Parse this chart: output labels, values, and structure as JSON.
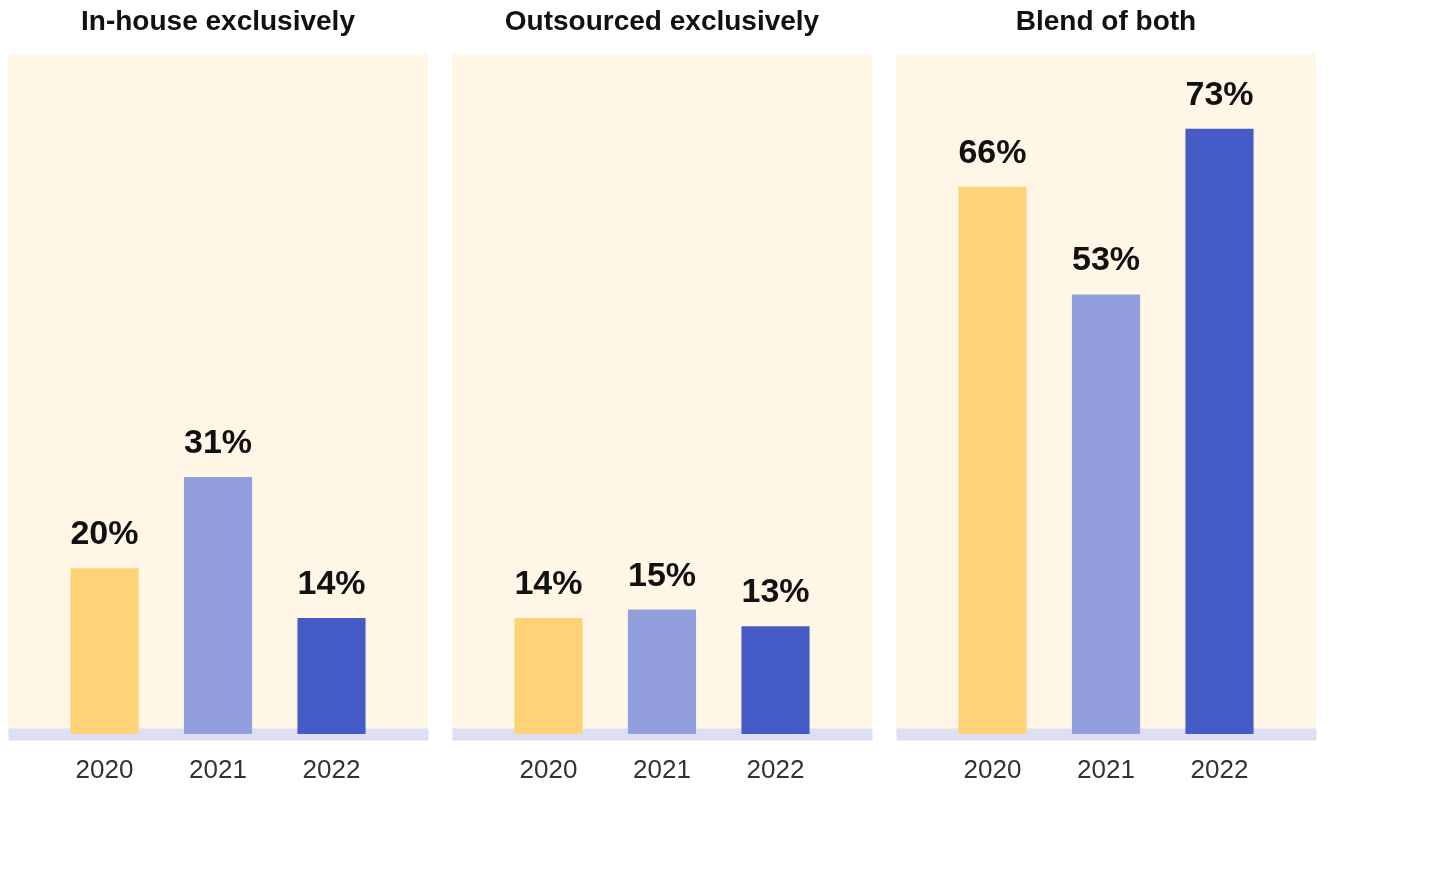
{
  "chart_data": [
    {
      "type": "bar",
      "title": "In-house exclusively",
      "categories": [
        "2020",
        "2021",
        "2022"
      ],
      "values": [
        20,
        31,
        14
      ],
      "value_labels": [
        "20%",
        "31%",
        "14%"
      ],
      "colors": [
        "#fed378",
        "#929fdc",
        "#455bc5"
      ],
      "ylim": [
        0,
        82
      ],
      "tick_labels": "x",
      "grid": false
    },
    {
      "type": "bar",
      "title": "Outsourced exclusively",
      "categories": [
        "2020",
        "2021",
        "2022"
      ],
      "values": [
        14,
        15,
        13
      ],
      "value_labels": [
        "14%",
        "15%",
        "13%"
      ],
      "colors": [
        "#fed378",
        "#929fdc",
        "#455bc5"
      ],
      "ylim": [
        0,
        82
      ],
      "tick_labels": "x",
      "grid": false
    },
    {
      "type": "bar",
      "title": "Blend of both",
      "categories": [
        "2020",
        "2021",
        "2022"
      ],
      "values": [
        66,
        53,
        73
      ],
      "value_labels": [
        "66%",
        "53%",
        "73%"
      ],
      "colors": [
        "#fed378",
        "#929fdc",
        "#455bc5"
      ],
      "ylim": [
        0,
        82
      ],
      "tick_labels": "x",
      "grid": false
    }
  ]
}
